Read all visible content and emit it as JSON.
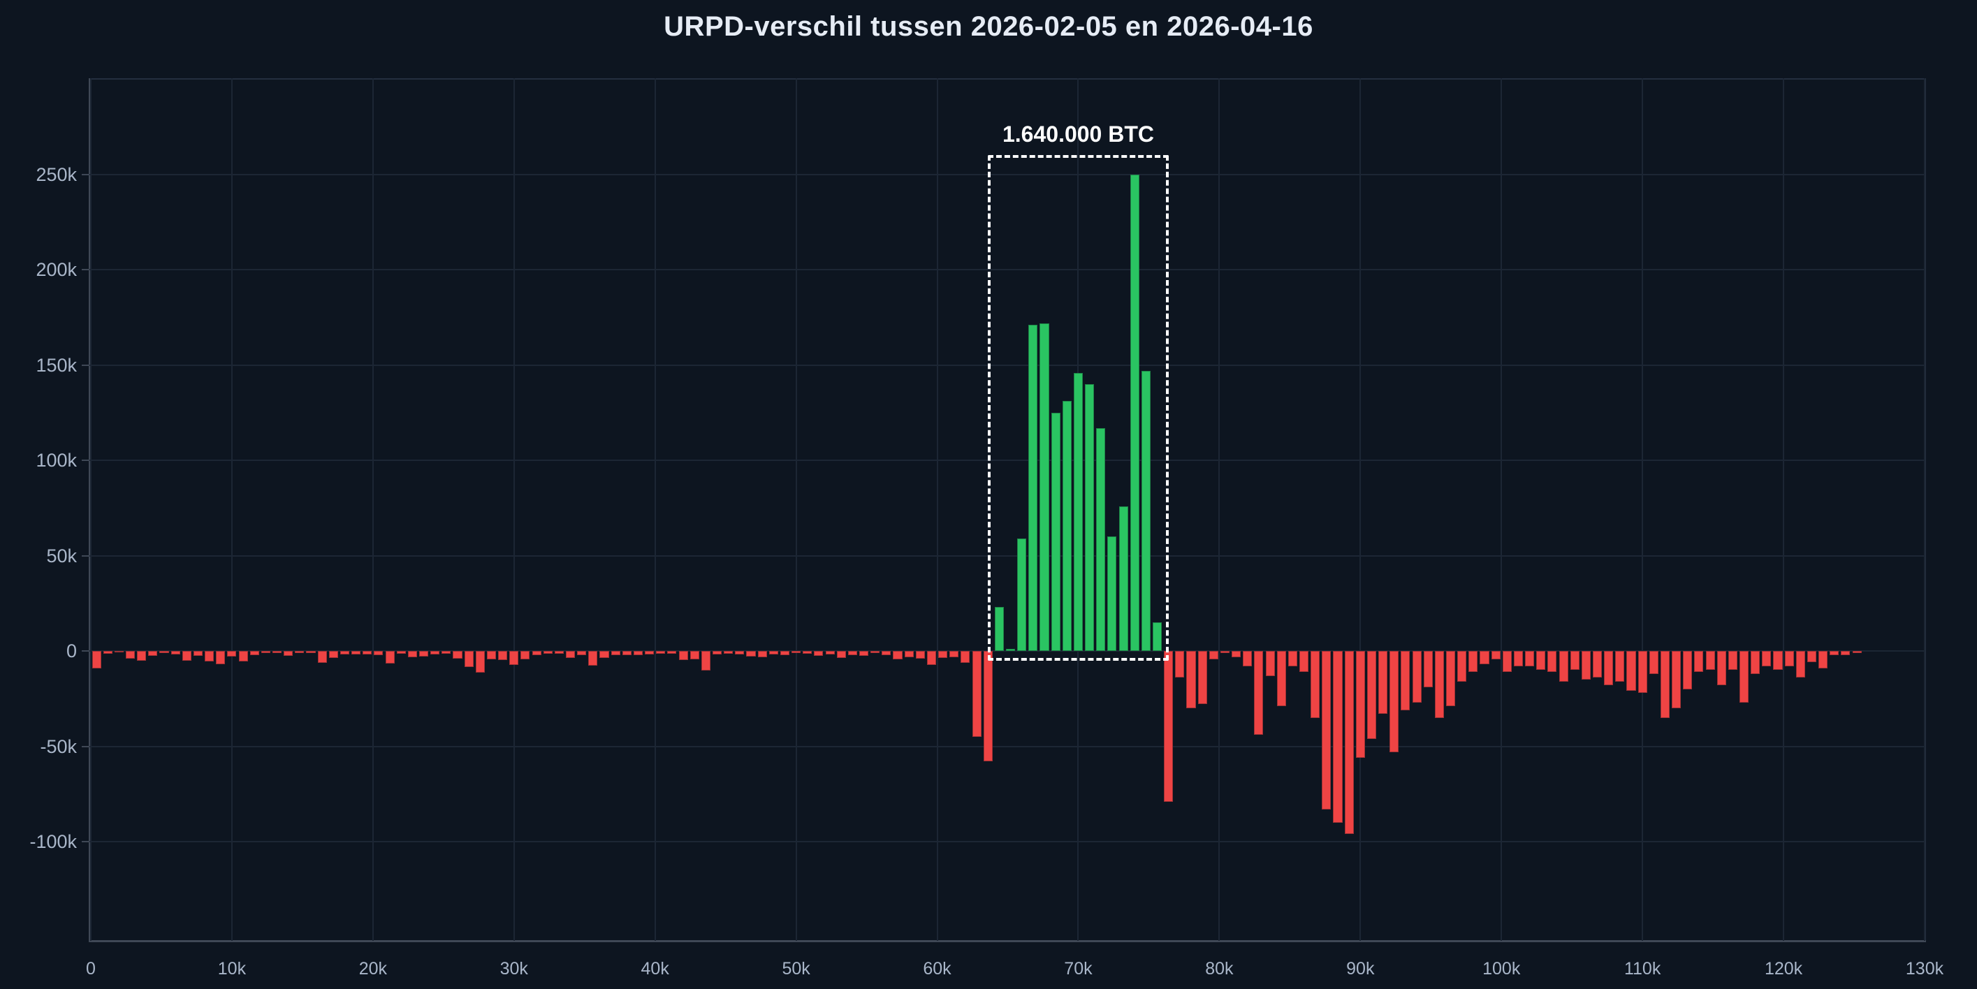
{
  "chart_data": {
    "type": "bar",
    "title": "URPD-verschil tussen 2026-02-05 en 2026-04-16",
    "xlabel": "",
    "ylabel": "",
    "legend": "none",
    "grid": true,
    "x_unit": "BTC-price bucket",
    "y_unit": "BTC",
    "bucket_size": 800,
    "x_start": 0,
    "xlim": [
      0,
      130000
    ],
    "ylim": [
      -152000,
      300400
    ],
    "x_ticks": [
      {
        "v": 0,
        "label": "0"
      },
      {
        "v": 10000,
        "label": "10k"
      },
      {
        "v": 20000,
        "label": "20k"
      },
      {
        "v": 30000,
        "label": "30k"
      },
      {
        "v": 40000,
        "label": "40k"
      },
      {
        "v": 50000,
        "label": "50k"
      },
      {
        "v": 60000,
        "label": "60k"
      },
      {
        "v": 70000,
        "label": "70k"
      },
      {
        "v": 80000,
        "label": "80k"
      },
      {
        "v": 90000,
        "label": "90k"
      },
      {
        "v": 100000,
        "label": "100k"
      },
      {
        "v": 110000,
        "label": "110k"
      },
      {
        "v": 120000,
        "label": "120k"
      },
      {
        "v": 130000,
        "label": "130k"
      }
    ],
    "y_ticks": [
      {
        "v": 250000,
        "label": "250k"
      },
      {
        "v": 200000,
        "label": "200k"
      },
      {
        "v": 150000,
        "label": "150k"
      },
      {
        "v": 100000,
        "label": "100k"
      },
      {
        "v": 50000,
        "label": "50k"
      },
      {
        "v": 0,
        "label": "0"
      },
      {
        "v": -50000,
        "label": "-50k"
      },
      {
        "v": -100000,
        "label": "-100k"
      }
    ],
    "annotation": {
      "text": "1.640.000 BTC",
      "x0": 63600,
      "x1": 76400,
      "y0": -5000,
      "y1": 260000
    },
    "colors": {
      "positive": "#2AC462",
      "negative": "#EF4444",
      "background": "#0D1520",
      "gridline": "#1C2634",
      "axis": "#3F4856",
      "border": "#242F3F",
      "tick_label": "#A9B6C9",
      "title": "#E6ECF5",
      "annotation": "#FFFFFF"
    },
    "values": [
      -9000,
      -1500,
      -400,
      -4000,
      -5200,
      -2700,
      -1000,
      -1800,
      -5100,
      -2400,
      -5500,
      -7000,
      -3000,
      -5500,
      -2200,
      -1000,
      -1200,
      -2400,
      -1200,
      -1000,
      -6100,
      -3700,
      -1800,
      -1800,
      -1800,
      -2200,
      -6700,
      -1500,
      -3200,
      -2900,
      -1700,
      -1500,
      -3900,
      -8400,
      -11200,
      -4400,
      -4800,
      -7200,
      -4200,
      -2000,
      -1300,
      -1300,
      -3500,
      -2000,
      -7800,
      -3800,
      -2000,
      -2300,
      -2300,
      -1700,
      -1500,
      -1500,
      -4800,
      -4200,
      -10300,
      -1700,
      -1500,
      -1700,
      -2900,
      -3200,
      -1700,
      -2000,
      -1100,
      -1500,
      -2700,
      -1700,
      -3500,
      -2000,
      -2700,
      -1100,
      -2300,
      -4400,
      -3200,
      -3900,
      -7200,
      -3500,
      -3200,
      -6300,
      -45000,
      -58000,
      23000,
      1200,
      59000,
      171000,
      172000,
      125000,
      131000,
      146000,
      140000,
      117000,
      60000,
      76000,
      250000,
      147000,
      15000,
      -79000,
      -14000,
      -30000,
      -28000,
      -4200,
      -1000,
      -3400,
      -8200,
      -44000,
      -13000,
      -29000,
      -8200,
      -11000,
      -35000,
      -83000,
      -90000,
      -96000,
      -56000,
      -46000,
      -33000,
      -53000,
      -31000,
      -27000,
      -19000,
      -35000,
      -29000,
      -16000,
      -11000,
      -7000,
      -4200,
      -11000,
      -8200,
      -8000,
      -10000,
      -11000,
      -16000,
      -10000,
      -15000,
      -14000,
      -18000,
      -16000,
      -21000,
      -22000,
      -12000,
      -35000,
      -30000,
      -20000,
      -11000,
      -10000,
      -18000,
      -10000,
      -27000,
      -12000,
      -8000,
      -10000,
      -8000,
      -14000,
      -6000,
      -9000,
      -2000,
      -2300,
      -1000
    ]
  }
}
